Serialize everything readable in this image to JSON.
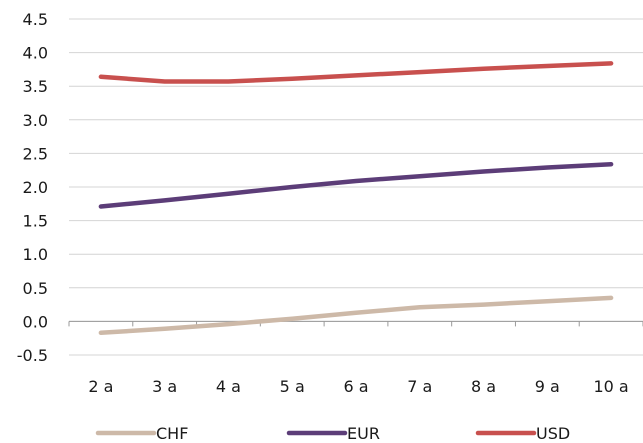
{
  "chart_data": {
    "type": "line",
    "title": "",
    "xlabel": "",
    "ylabel": "",
    "categories": [
      "2 a",
      "3 a",
      "4 a",
      "5 a",
      "6 a",
      "7 a",
      "8 a",
      "9 a",
      "10 a"
    ],
    "y_ticks": [
      "4.5",
      "4.0",
      "3.5",
      "3.0",
      "2.5",
      "2.0",
      "1.5",
      "1.0",
      "0.5",
      "0.0",
      "-0.5"
    ],
    "ylim": [
      -0.5,
      4.5
    ],
    "grid": true,
    "legend_position": "bottom",
    "series": [
      {
        "name": "CHF",
        "color": "#cdb9a8",
        "values": [
          -0.17,
          -0.11,
          -0.04,
          0.04,
          0.13,
          0.21,
          0.25,
          0.3,
          0.35
        ]
      },
      {
        "name": "EUR",
        "color": "#5c3d78",
        "values": [
          1.71,
          1.8,
          1.9,
          2.0,
          2.09,
          2.16,
          2.23,
          2.29,
          2.34
        ]
      },
      {
        "name": "USD",
        "color": "#c8504e",
        "values": [
          3.64,
          3.57,
          3.57,
          3.61,
          3.66,
          3.71,
          3.76,
          3.8,
          3.84
        ]
      }
    ]
  }
}
